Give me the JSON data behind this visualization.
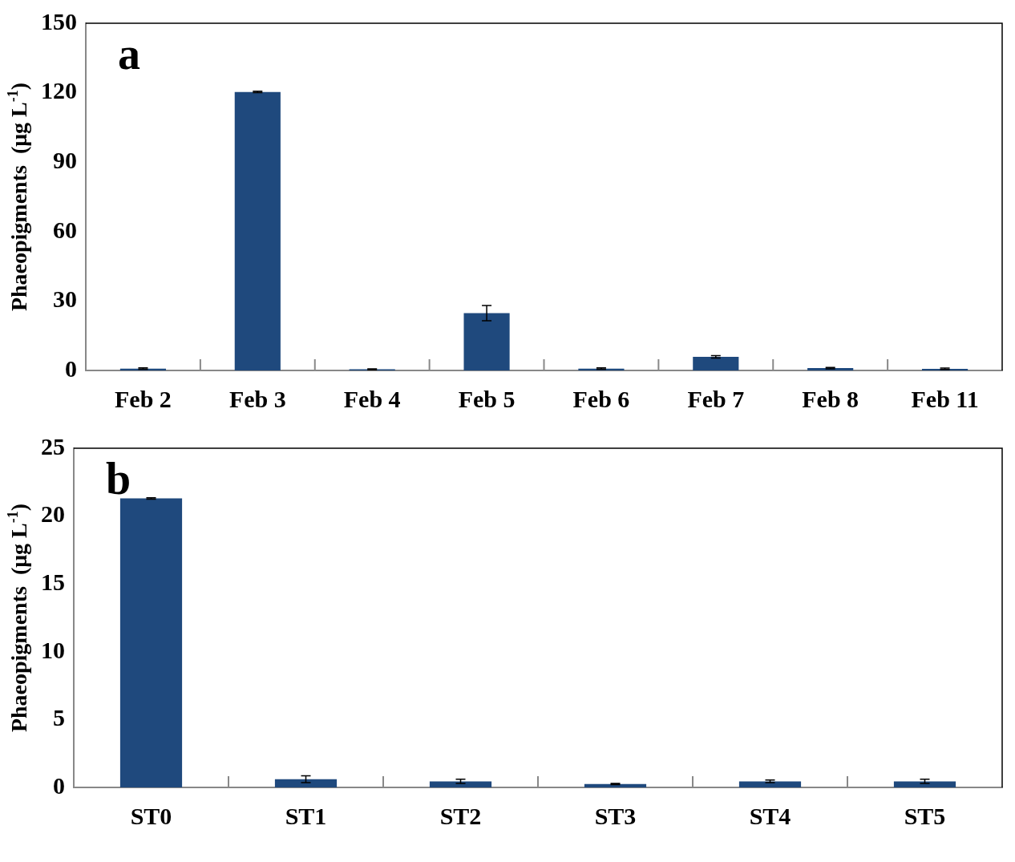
{
  "chart_data": [
    {
      "type": "bar",
      "ylabel": "Phaeopigments  (μg L$^{-1}$)",
      "annotations": [
        "a"
      ],
      "categories": [
        "Feb 2",
        "Feb 3",
        "Feb 4",
        "Feb 5",
        "Feb 6",
        "Feb 7",
        "Feb 8",
        "Feb 11"
      ],
      "values": [
        0.8,
        120.3,
        0.5,
        24.8,
        0.8,
        5.9,
        1.0,
        0.7
      ],
      "errors": [
        0.3,
        0.3,
        0.2,
        3.3,
        0.3,
        0.5,
        0.3,
        0.3
      ],
      "color": "#1f497d",
      "ylim": [
        0,
        150
      ],
      "yticks": [
        0,
        30,
        60,
        90,
        120,
        150
      ],
      "grid": false,
      "legend": false
    },
    {
      "type": "bar",
      "ylabel": "Phaeopigments  (μg L$^{-1}$)",
      "annotations": [
        "b"
      ],
      "categories": [
        "ST0",
        "ST1",
        "ST2",
        "ST3",
        "ST4",
        "ST5"
      ],
      "values": [
        21.3,
        0.6,
        0.45,
        0.25,
        0.45,
        0.45
      ],
      "errors": [
        0.05,
        0.25,
        0.15,
        0.05,
        0.1,
        0.15
      ],
      "color": "#1f497d",
      "ylim": [
        0,
        25
      ],
      "yticks": [
        0,
        5,
        10,
        15,
        20,
        25
      ],
      "grid": false,
      "legend": false
    }
  ]
}
